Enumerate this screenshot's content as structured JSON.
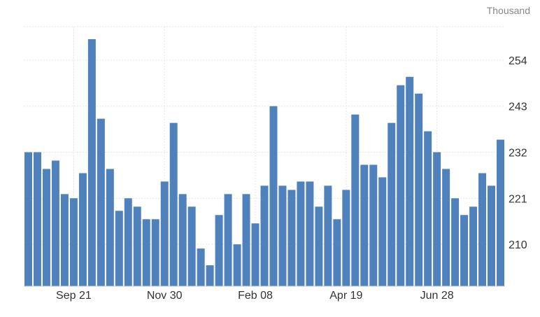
{
  "chart_data": {
    "type": "bar",
    "unit_label": "Thousand",
    "ylim": [
      200,
      262
    ],
    "y_ticks": [
      210,
      221,
      232,
      243,
      254
    ],
    "x_tick_labels": [
      {
        "label": "Sep 21",
        "index": 5
      },
      {
        "label": "Nov 30",
        "index": 15
      },
      {
        "label": "Feb 08",
        "index": 25
      },
      {
        "label": "Apr 19",
        "index": 35
      },
      {
        "label": "Jun 28",
        "index": 45
      }
    ],
    "values": [
      232,
      232,
      228,
      230,
      222,
      221,
      227,
      259,
      240,
      228,
      218,
      221,
      219,
      216,
      216,
      225,
      239,
      222,
      219,
      209,
      205,
      217,
      222,
      210,
      222,
      215,
      224,
      243,
      224,
      223,
      225,
      225,
      219,
      224,
      216,
      223,
      241,
      229,
      229,
      226,
      239,
      248,
      250,
      246,
      237,
      232,
      228,
      221,
      217,
      219,
      227,
      224,
      235
    ],
    "grid": true,
    "bar_color": "#4f81bd"
  }
}
